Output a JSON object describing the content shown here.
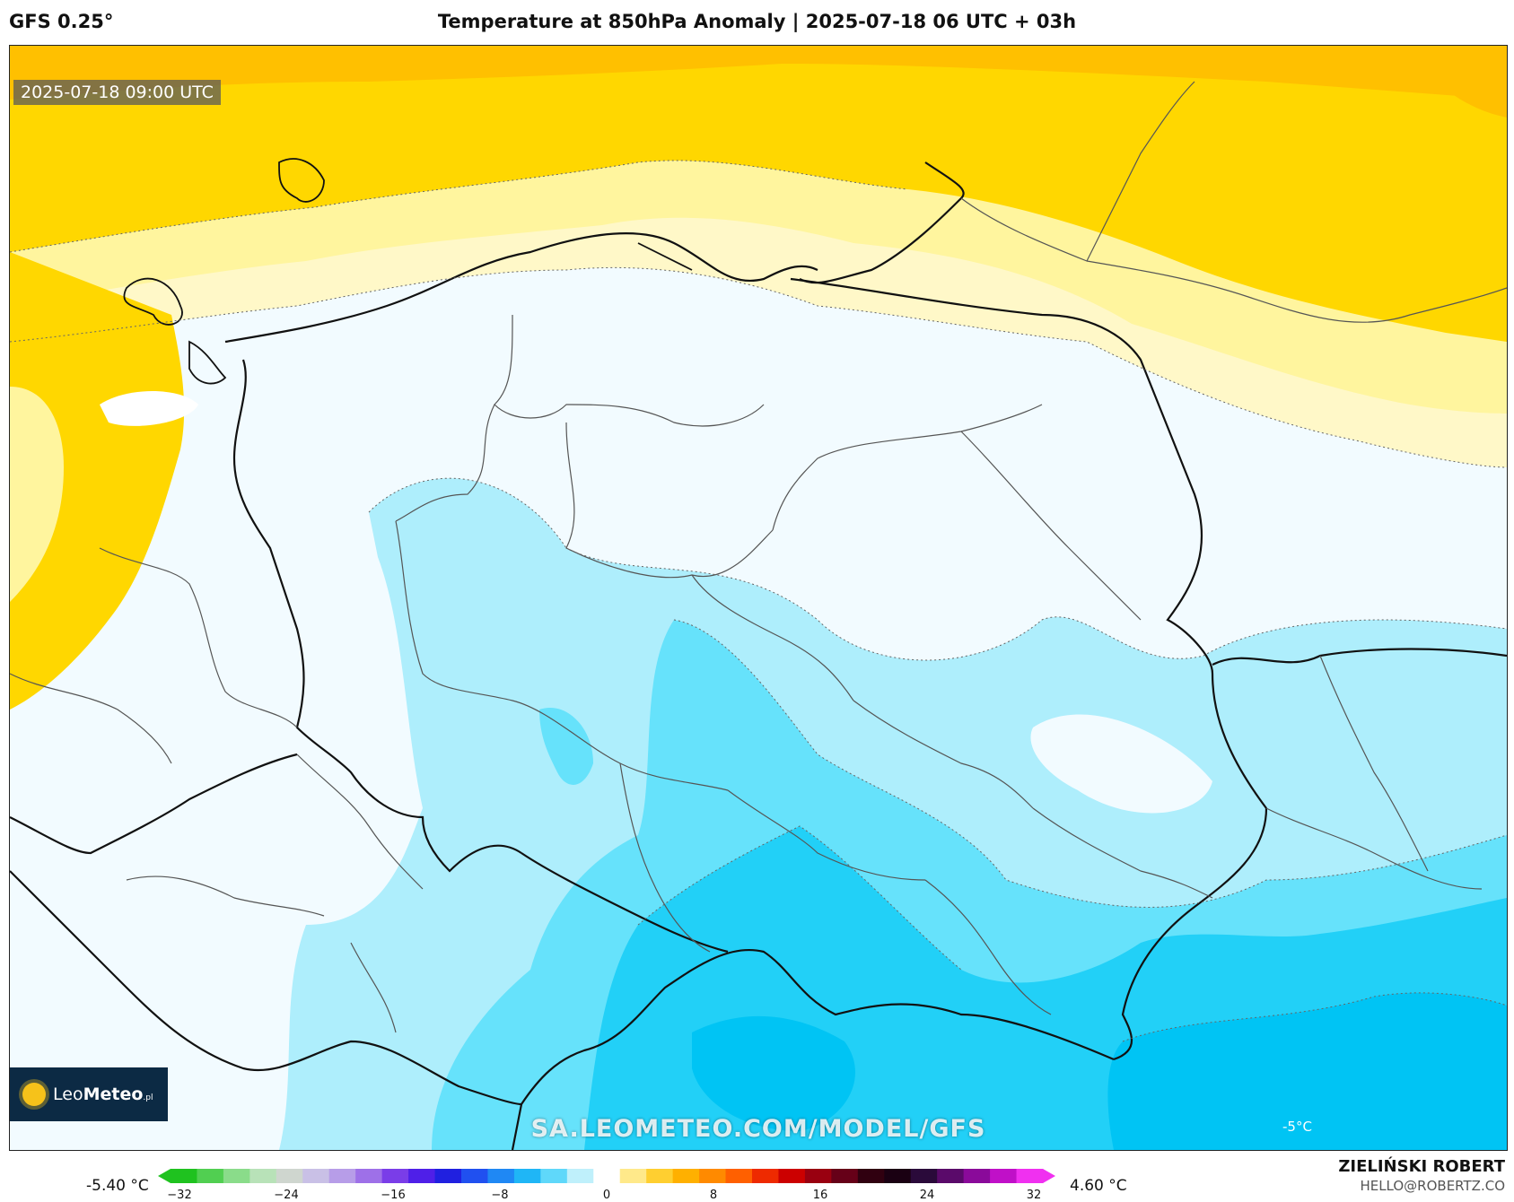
{
  "header": {
    "model": "GFS 0.25°",
    "title": "Temperature at 850hPa Anomaly | 2025-07-18 06 UTC + 03h"
  },
  "map": {
    "timestamp": "2025-07-18 09:00 UTC",
    "watermark": "SA.LEOMETEO.COM/MODEL/GFS",
    "contour_label": "-5°C",
    "logo": {
      "brand_light": "Leo",
      "brand_bold": "Meteo",
      "suffix": ".pl"
    },
    "colors": {
      "orange": "#ffc000",
      "yellow": "#ffd700",
      "light_yellow": "#fff59e",
      "pale_yellow": "#fff8c8",
      "white": "#ffffff",
      "ice": "#e9f8fe",
      "light_cyan": "#aeeefc",
      "cyan": "#66e2fb",
      "blue": "#22d0f7",
      "deep_blue": "#00c4f4"
    }
  },
  "colorbar": {
    "min_label": "-5.40 °C",
    "max_label": "4.60 °C",
    "ticks": [
      "−32",
      "−24",
      "−16",
      "−8",
      "0",
      "8",
      "16",
      "24",
      "32"
    ],
    "colors": [
      "#1fc21f",
      "#51cf51",
      "#8adc8a",
      "#b8e2b8",
      "#cfd6cf",
      "#c9c0e6",
      "#b79de8",
      "#9e70e8",
      "#7a3de8",
      "#4f1fe8",
      "#2020e0",
      "#2050f0",
      "#1f88f4",
      "#1fb6f6",
      "#5fd8fa",
      "#bff0fb",
      "#ffffff",
      "#ffe98a",
      "#ffcf30",
      "#ffb000",
      "#ff8a00",
      "#ff6000",
      "#ee2a00",
      "#cc0000",
      "#990010",
      "#660018",
      "#300010",
      "#1a0012",
      "#2a0a3a",
      "#5a0a6a",
      "#8a0a9a",
      "#c010c8",
      "#f030f0"
    ]
  },
  "credits": {
    "author": "ZIELIŃSKI ROBERT",
    "email": "HELLO@ROBERTZ.CO"
  }
}
